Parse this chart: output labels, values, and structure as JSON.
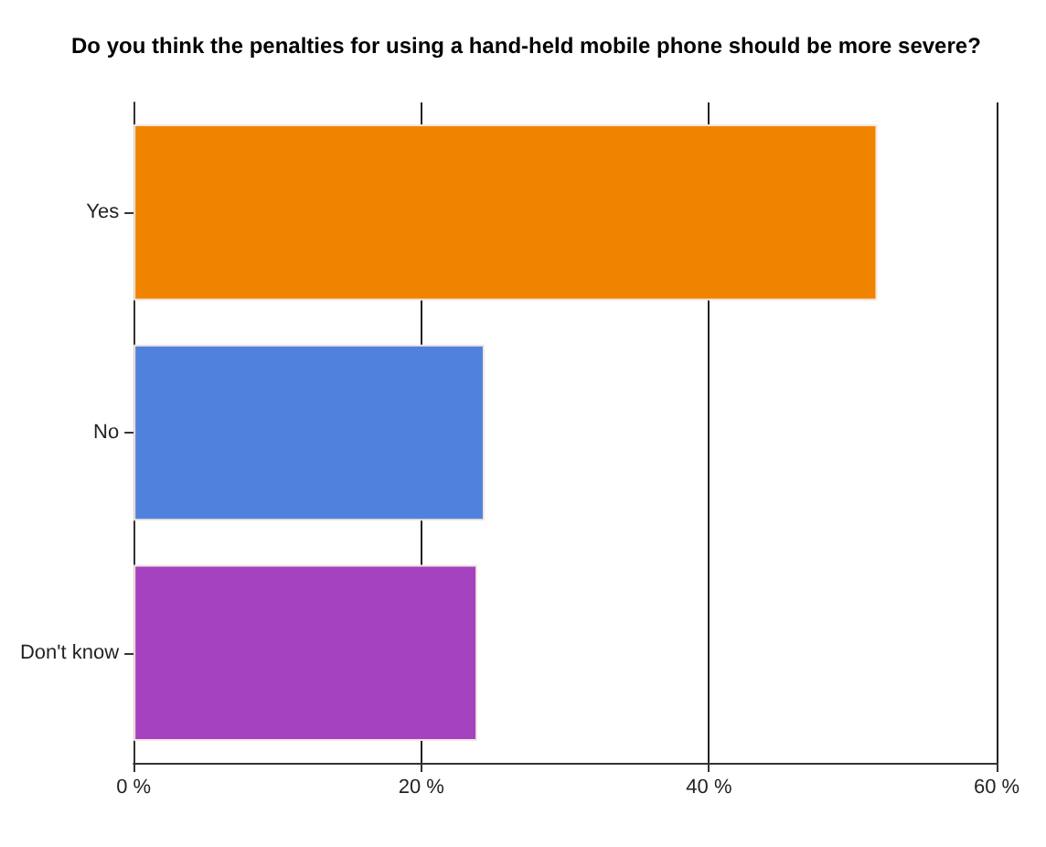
{
  "chart_data": {
    "type": "bar",
    "orientation": "horizontal",
    "title": "Do you think the penalties for using a hand-held mobile phone should be more severe?",
    "categories": [
      "Yes",
      "No",
      "Don't know"
    ],
    "values": [
      51.7,
      24.4,
      23.9
    ],
    "colors": [
      "#f08400",
      "#4f82dd",
      "#a542c0"
    ],
    "xlim": [
      0,
      60
    ],
    "xticks": [
      {
        "value": 0,
        "label": "0 %"
      },
      {
        "value": 20,
        "label": "20 %"
      },
      {
        "value": 40,
        "label": "40 %"
      },
      {
        "value": 60,
        "label": "60 %"
      }
    ],
    "grid": "x"
  }
}
